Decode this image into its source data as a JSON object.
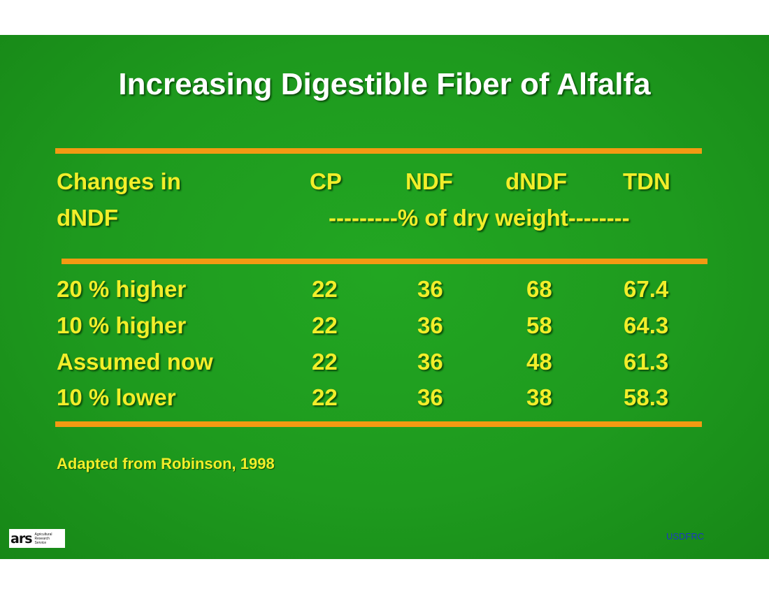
{
  "title": "Increasing Digestible Fiber of Alfalfa",
  "table": {
    "header_row1": [
      "Changes in",
      "CP",
      "NDF",
      "dNDF",
      "TDN"
    ],
    "header_row2_label": "dNDF",
    "units": "---------% of dry weight--------",
    "rows": [
      {
        "label": "20 % higher",
        "cp": "22",
        "ndf": "36",
        "dndf": "68",
        "tdn": "67.4"
      },
      {
        "label": "10 % higher",
        "cp": "22",
        "ndf": "36",
        "dndf": "58",
        "tdn": "64.3"
      },
      {
        "label": "Assumed now",
        "cp": "22",
        "ndf": "36",
        "dndf": "48",
        "tdn": "61.3"
      },
      {
        "label": "10 % lower",
        "cp": "22",
        "ndf": "36",
        "dndf": "38",
        "tdn": "58.3"
      }
    ]
  },
  "source": "Adapted from Robinson, 1998",
  "footer": {
    "org": "USDFRC",
    "logo_mark": "ars",
    "logo_text": [
      "Agricultural",
      "Research",
      "Service"
    ]
  },
  "colors": {
    "background": "#1e9a1e",
    "title": "#ffffff",
    "text": "#f2ee2a",
    "rule": "#f39a12",
    "footer_text": "#1d35c7"
  }
}
